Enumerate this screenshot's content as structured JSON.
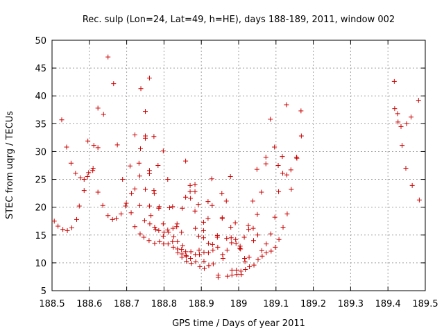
{
  "chart_data": {
    "type": "scatter",
    "title": "Rec. sulp (Lon=24, Lat=49, h=HE), days 188-189, 2011, window 002",
    "xlabel": "GPS time / Days of year 2011",
    "ylabel": "STEC from uqrg / TECUs",
    "xlim": [
      188.5,
      189.5
    ],
    "ylim": [
      5,
      50
    ],
    "xticks": [
      "188.5",
      "188.6",
      "188.7",
      "188.8",
      "188.9",
      "189",
      "189.1",
      "189.2",
      "189.3",
      "189.4",
      "189.5"
    ],
    "xtick_values": [
      188.5,
      188.6,
      188.7,
      188.8,
      188.9,
      189.0,
      189.1,
      189.2,
      189.3,
      189.4,
      189.5
    ],
    "yticks": [
      "5",
      "10",
      "15",
      "20",
      "25",
      "30",
      "35",
      "40",
      "45",
      "50"
    ],
    "ytick_values": [
      5,
      10,
      15,
      20,
      25,
      30,
      35,
      40,
      45,
      50
    ],
    "grid": true,
    "marker": "+",
    "color": "#cc0000",
    "points": [
      [
        188.506,
        17.5
      ],
      [
        188.516,
        16.6
      ],
      [
        188.526,
        35.7
      ],
      [
        188.529,
        16.0
      ],
      [
        188.539,
        30.8
      ],
      [
        188.541,
        15.8
      ],
      [
        188.551,
        27.9
      ],
      [
        188.553,
        16.3
      ],
      [
        188.563,
        26.1
      ],
      [
        188.566,
        17.8
      ],
      [
        188.573,
        20.2
      ],
      [
        188.576,
        25.3
      ],
      [
        188.586,
        25.0
      ],
      [
        188.586,
        23.0
      ],
      [
        188.595,
        25.5
      ],
      [
        188.596,
        31.9
      ],
      [
        188.598,
        26.2
      ],
      [
        188.609,
        26.6
      ],
      [
        188.61,
        27.0
      ],
      [
        188.612,
        31.1
      ],
      [
        188.623,
        37.8
      ],
      [
        188.623,
        30.7
      ],
      [
        188.623,
        22.7
      ],
      [
        188.636,
        20.3
      ],
      [
        188.638,
        36.7
      ],
      [
        188.65,
        18.5
      ],
      [
        188.65,
        47.0
      ],
      [
        188.662,
        17.8
      ],
      [
        188.665,
        42.2
      ],
      [
        188.672,
        18.0
      ],
      [
        188.675,
        31.2
      ],
      [
        188.685,
        18.8
      ],
      [
        188.689,
        25.0
      ],
      [
        188.697,
        20.2
      ],
      [
        188.699,
        20.7
      ],
      [
        188.709,
        27.4
      ],
      [
        188.712,
        19.0
      ],
      [
        188.713,
        22.5
      ],
      [
        188.722,
        16.5
      ],
      [
        188.722,
        23.3
      ],
      [
        188.722,
        33.0
      ],
      [
        188.733,
        27.9
      ],
      [
        188.735,
        25.6
      ],
      [
        188.735,
        20.3
      ],
      [
        188.736,
        15.2
      ],
      [
        188.737,
        30.5
      ],
      [
        188.738,
        41.3
      ],
      [
        188.746,
        14.6
      ],
      [
        188.748,
        17.6
      ],
      [
        188.75,
        23.2
      ],
      [
        188.75,
        32.4
      ],
      [
        188.75,
        37.2
      ],
      [
        188.75,
        32.8
      ],
      [
        188.76,
        14.0
      ],
      [
        188.761,
        43.2
      ],
      [
        188.761,
        26.6
      ],
      [
        188.761,
        26.0
      ],
      [
        188.761,
        20.2
      ],
      [
        188.762,
        17.0
      ],
      [
        188.765,
        18.5
      ],
      [
        188.773,
        32.7
      ],
      [
        188.773,
        23.0
      ],
      [
        188.774,
        22.5
      ],
      [
        188.775,
        16.4
      ],
      [
        188.775,
        13.5
      ],
      [
        188.778,
        16.0
      ],
      [
        188.784,
        27.5
      ],
      [
        188.786,
        19.8
      ],
      [
        188.787,
        20.1
      ],
      [
        188.786,
        15.8
      ],
      [
        188.788,
        13.8
      ],
      [
        188.798,
        30.1
      ],
      [
        188.798,
        17.0
      ],
      [
        188.798,
        14.8
      ],
      [
        188.799,
        13.4
      ],
      [
        188.8,
        15.5
      ],
      [
        188.81,
        25.0
      ],
      [
        188.81,
        15.9
      ],
      [
        188.811,
        13.4
      ],
      [
        188.812,
        15.5
      ],
      [
        188.815,
        19.9
      ],
      [
        188.823,
        20.1
      ],
      [
        188.823,
        13.8
      ],
      [
        188.824,
        16.2
      ],
      [
        188.825,
        12.8
      ],
      [
        188.826,
        14.7
      ],
      [
        188.834,
        16.5
      ],
      [
        188.835,
        17.0
      ],
      [
        188.836,
        12.5
      ],
      [
        188.836,
        13.8
      ],
      [
        188.837,
        11.8
      ],
      [
        188.847,
        15.5
      ],
      [
        188.847,
        12.4
      ],
      [
        188.848,
        11.0
      ],
      [
        188.848,
        11.6
      ],
      [
        188.849,
        19.8
      ],
      [
        188.85,
        13.1
      ],
      [
        188.858,
        28.3
      ],
      [
        188.858,
        21.8
      ],
      [
        188.858,
        12.0
      ],
      [
        188.859,
        11.3
      ],
      [
        188.86,
        10.3
      ],
      [
        188.86,
        11.2
      ],
      [
        188.87,
        23.9
      ],
      [
        188.87,
        22.8
      ],
      [
        188.871,
        21.6
      ],
      [
        188.871,
        10.8
      ],
      [
        188.872,
        12.0
      ],
      [
        188.873,
        9.9
      ],
      [
        188.883,
        24.1
      ],
      [
        188.883,
        22.8
      ],
      [
        188.883,
        19.3
      ],
      [
        188.884,
        16.2
      ],
      [
        188.884,
        11.5
      ],
      [
        188.885,
        10.2
      ],
      [
        188.892,
        20.5
      ],
      [
        188.893,
        14.8
      ],
      [
        188.894,
        12.3
      ],
      [
        188.895,
        11.5
      ],
      [
        188.896,
        9.3
      ],
      [
        188.906,
        17.3
      ],
      [
        188.906,
        15.8
      ],
      [
        188.906,
        14.5
      ],
      [
        188.907,
        11.9
      ],
      [
        188.907,
        10.3
      ],
      [
        188.908,
        9.0
      ],
      [
        188.918,
        21.0
      ],
      [
        188.918,
        18.0
      ],
      [
        188.919,
        13.5
      ],
      [
        188.919,
        11.8
      ],
      [
        188.92,
        9.5
      ],
      [
        188.928,
        25.1
      ],
      [
        188.929,
        20.3
      ],
      [
        188.93,
        13.3
      ],
      [
        188.931,
        12.3
      ],
      [
        188.932,
        9.8
      ],
      [
        188.943,
        14.6
      ],
      [
        188.943,
        14.9
      ],
      [
        188.944,
        12.8
      ],
      [
        188.945,
        7.8
      ],
      [
        188.945,
        7.4
      ],
      [
        188.955,
        22.5
      ],
      [
        188.956,
        18.1
      ],
      [
        188.956,
        18.0
      ],
      [
        188.957,
        11.5
      ],
      [
        188.958,
        10.8
      ],
      [
        188.967,
        21.1
      ],
      [
        188.968,
        14.4
      ],
      [
        188.969,
        12.3
      ],
      [
        188.97,
        7.6
      ],
      [
        188.978,
        25.5
      ],
      [
        188.979,
        16.4
      ],
      [
        188.98,
        14.5
      ],
      [
        188.981,
        13.6
      ],
      [
        188.982,
        8.7
      ],
      [
        188.982,
        7.8
      ],
      [
        188.991,
        17.2
      ],
      [
        188.992,
        14.2
      ],
      [
        188.993,
        13.5
      ],
      [
        188.994,
        8.7
      ],
      [
        188.995,
        7.9
      ],
      [
        189.003,
        12.6
      ],
      [
        189.004,
        13.0
      ],
      [
        189.005,
        12.5
      ],
      [
        189.006,
        8.5
      ],
      [
        189.007,
        7.9
      ],
      [
        189.015,
        14.6
      ],
      [
        189.016,
        10.8
      ],
      [
        189.017,
        10.2
      ],
      [
        189.018,
        8.8
      ],
      [
        189.026,
        16.7
      ],
      [
        189.027,
        16.0
      ],
      [
        189.028,
        11.0
      ],
      [
        189.029,
        9.3
      ],
      [
        189.038,
        21.1
      ],
      [
        189.039,
        16.2
      ],
      [
        189.04,
        14.0
      ],
      [
        189.041,
        9.6
      ],
      [
        189.049,
        26.8
      ],
      [
        189.05,
        18.7
      ],
      [
        189.051,
        15.0
      ],
      [
        189.052,
        10.6
      ],
      [
        189.061,
        22.7
      ],
      [
        189.062,
        12.2
      ],
      [
        189.063,
        11.2
      ],
      [
        189.073,
        29.0
      ],
      [
        189.073,
        27.8
      ],
      [
        189.074,
        13.4
      ],
      [
        189.074,
        11.8
      ],
      [
        189.085,
        35.8
      ],
      [
        189.086,
        15.2
      ],
      [
        189.087,
        12.1
      ],
      [
        189.096,
        30.8
      ],
      [
        189.097,
        18.2
      ],
      [
        189.098,
        12.8
      ],
      [
        189.106,
        27.5
      ],
      [
        189.107,
        22.8
      ],
      [
        189.108,
        14.2
      ],
      [
        189.117,
        29.1
      ],
      [
        189.118,
        26.1
      ],
      [
        189.119,
        16.4
      ],
      [
        189.128,
        38.4
      ],
      [
        189.129,
        25.8
      ],
      [
        189.13,
        18.8
      ],
      [
        189.14,
        26.7
      ],
      [
        189.141,
        23.2
      ],
      [
        189.155,
        29.0
      ],
      [
        189.156,
        28.8
      ],
      [
        189.167,
        37.3
      ],
      [
        189.168,
        32.8
      ],
      [
        189.417,
        42.6
      ],
      [
        189.418,
        37.7
      ],
      [
        189.426,
        36.8
      ],
      [
        189.427,
        35.3
      ],
      [
        189.435,
        34.5
      ],
      [
        189.438,
        31.1
      ],
      [
        189.448,
        27.0
      ],
      [
        189.45,
        35.0
      ],
      [
        189.462,
        36.2
      ],
      [
        189.465,
        23.9
      ],
      [
        189.482,
        39.2
      ],
      [
        189.484,
        21.3
      ]
    ]
  }
}
